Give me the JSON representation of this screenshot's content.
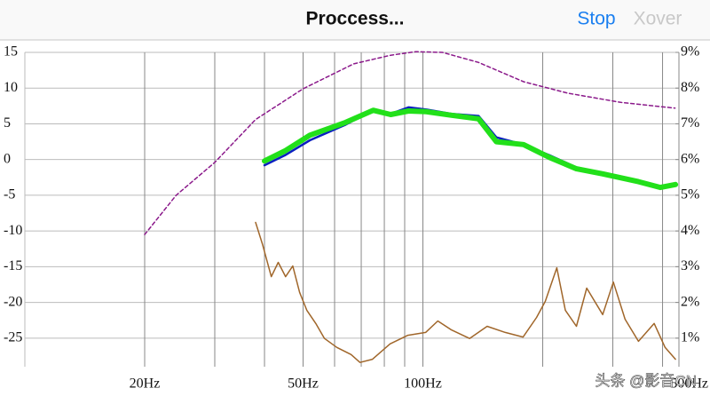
{
  "header": {
    "title": "Proccess...",
    "stop": "Stop",
    "xover": "Xover"
  },
  "watermark": "头条 @影音CN",
  "chart_data": {
    "type": "line",
    "xlim": [
      10,
      500
    ],
    "log_x": true,
    "xticks": [
      {
        "value": 20,
        "label": "20Hz"
      },
      {
        "value": 50,
        "label": "50Hz"
      },
      {
        "value": 100,
        "label": "100Hz"
      },
      {
        "value": 500,
        "label": "500Hz"
      }
    ],
    "x_minor_ticks": [
      30,
      40,
      60,
      70,
      80,
      90,
      200,
      300,
      400
    ],
    "ylim": [
      -29,
      15
    ],
    "yticks": [
      15,
      10,
      5,
      0,
      -5,
      -10,
      -15,
      -20,
      -25
    ],
    "y2lim": [
      0.2,
      9
    ],
    "y2ticks": [
      {
        "value": 9,
        "label": "9%"
      },
      {
        "value": 8,
        "label": "8%"
      },
      {
        "value": 7,
        "label": "7%"
      },
      {
        "value": 6,
        "label": "6%"
      },
      {
        "value": 5,
        "label": "5%"
      },
      {
        "value": 4,
        "label": "4%"
      },
      {
        "value": 3,
        "label": "3%"
      },
      {
        "value": 2,
        "label": "2%"
      },
      {
        "value": 1,
        "label": "1%"
      }
    ],
    "grid": true,
    "series": [
      {
        "color": "#8b1a8b",
        "dashed": true,
        "width": 1.5,
        "x": [
          20,
          24,
          30,
          38,
          50,
          67,
          83,
          96,
          112,
          138,
          179,
          231,
          314,
          430
        ],
        "values": [
          -10.5,
          -5.0,
          -0.4,
          5.6,
          9.9,
          13.4,
          14.6,
          15.1,
          15,
          13.6,
          10.9,
          9.3,
          8.0,
          7.2
        ]
      },
      {
        "color": "#0a1fbf",
        "width": 2.5,
        "x": [
          40,
          45,
          52,
          64,
          75,
          83,
          92,
          102,
          118,
          138,
          153,
          179,
          208,
          243,
          283,
          348,
          395,
          431
        ],
        "values": [
          -0.8,
          0.6,
          2.7,
          4.9,
          6.9,
          6.4,
          7.3,
          7.0,
          6.4,
          6.1,
          3.1,
          2.1,
          0.6,
          -1.1,
          -1.9,
          -3.1,
          -4.0,
          -3.4
        ]
      },
      {
        "color": "#22e01a",
        "width": 6,
        "x": [
          40,
          45,
          52,
          64,
          75,
          83,
          92,
          102,
          118,
          138,
          153,
          179,
          208,
          243,
          283,
          348,
          395,
          431
        ],
        "values": [
          -0.2,
          1.2,
          3.4,
          5.2,
          6.9,
          6.3,
          6.8,
          6.7,
          6.2,
          5.7,
          2.5,
          2.1,
          0.3,
          -1.3,
          -2.0,
          -3.1,
          -3.9,
          -3.5
        ]
      },
      {
        "color": "#a0662a",
        "width": 1.5,
        "axis": "y2",
        "x": [
          38,
          39.5,
          41.6,
          43.3,
          45.2,
          47.1,
          49,
          51.1,
          53.8,
          56.6,
          60.8,
          66,
          69.5,
          74.7,
          82.7,
          91.7,
          101.6,
          109,
          118,
          131,
          145,
          161,
          178.5,
          193,
          203,
          217,
          228,
          243,
          258,
          283,
          301,
          322,
          348,
          381,
          406,
          431
        ],
        "values": [
          4.24,
          3.64,
          2.72,
          3.12,
          2.72,
          3.02,
          2.28,
          1.78,
          1.41,
          0.99,
          0.74,
          0.54,
          0.32,
          0.41,
          0.84,
          1.08,
          1.16,
          1.48,
          1.23,
          0.99,
          1.33,
          1.16,
          1.03,
          1.58,
          2.03,
          2.97,
          1.78,
          1.33,
          2.4,
          1.66,
          2.57,
          1.53,
          0.91,
          1.41,
          0.74,
          0.41
        ]
      }
    ]
  }
}
